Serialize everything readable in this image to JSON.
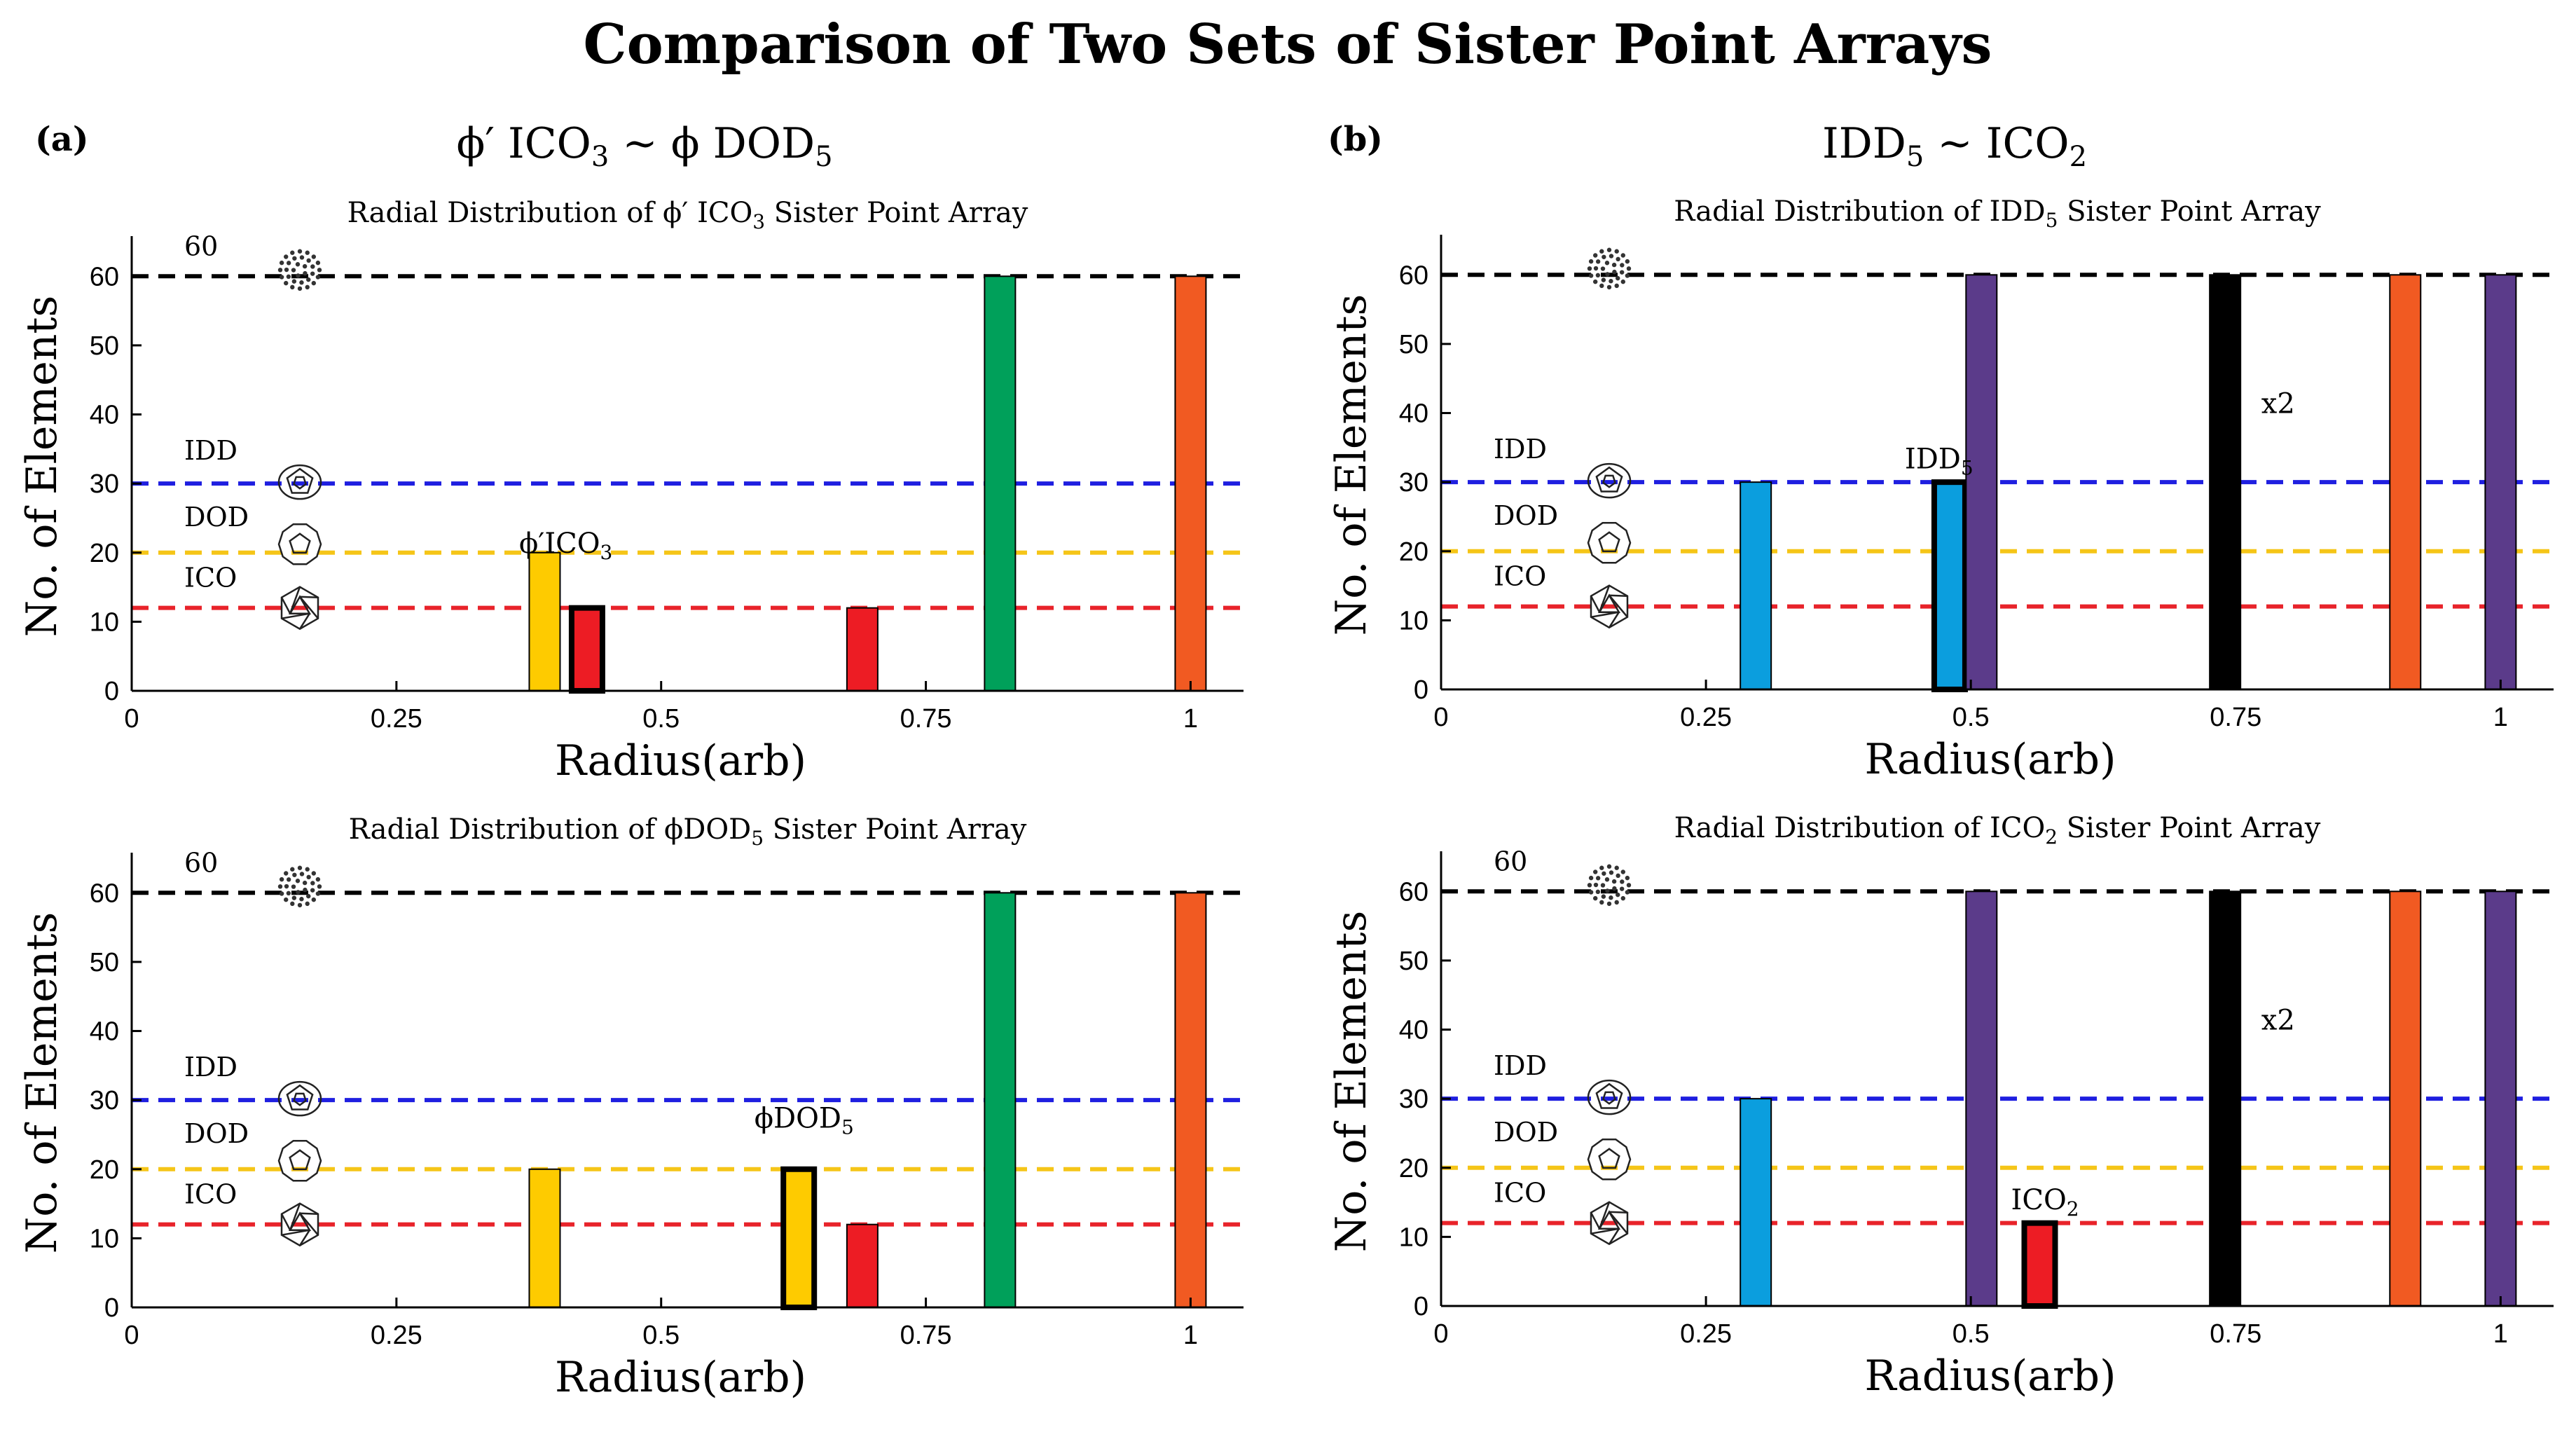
{
  "title": "Comparison of Two Sets of Sister Point Arrays",
  "panels": [
    {
      "label": "(a)",
      "heading_parts": {
        "a": "ϕ′ ICO",
        "sub": "3",
        "b": " ~ ϕ DOD",
        "sub2": "5"
      }
    },
    {
      "label": "(b)",
      "heading_parts": {
        "a": "IDD",
        "sub": "5",
        "b": " ~ ICO",
        "sub2": "2"
      }
    }
  ],
  "colors": {
    "black_line": "#000000",
    "idd_line": "#1f1fe0",
    "dod_line": "#f5c518",
    "ico_line": "#e8232a",
    "yellow": "#fecb00",
    "red": "#ed1c24",
    "green": "#00a05a",
    "orange": "#f15a22",
    "purple": "#5b3b8a",
    "blue": "#0b9ede",
    "black": "#000000"
  },
  "chart_data": [
    {
      "type": "bar",
      "title": "Radial Distribution of ϕ′ ICO₃ Sister Point Array",
      "title_parts": {
        "pre": "Radial Distribution of ϕ′ ICO",
        "sub": "3",
        "post": " Sister Point Array"
      },
      "xlabel": "Radius(arb)",
      "ylabel": "No. of Elements",
      "xlim": [
        0,
        1.05
      ],
      "ylim": [
        0,
        65
      ],
      "xticks": [
        0,
        0.25,
        0.5,
        0.75,
        1
      ],
      "xtick_labels": [
        "0",
        "0.25",
        "0.5",
        "0.75",
        "1"
      ],
      "yticks": [
        0,
        10,
        20,
        30,
        40,
        50,
        60
      ],
      "ytick_labels": [
        "0",
        "10",
        "20",
        "30",
        "40",
        "50",
        "60"
      ],
      "reference_lines": [
        {
          "name": "60",
          "value": 60,
          "color": "#000000",
          "label": "60",
          "icon": "sphere-60-icon"
        },
        {
          "name": "IDD",
          "value": 30,
          "color": "#1f1fe0",
          "label": "IDD",
          "icon": "idd-icon"
        },
        {
          "name": "DOD",
          "value": 20,
          "color": "#f5c518",
          "label": "DOD",
          "icon": "dod-icon"
        },
        {
          "name": "ICO",
          "value": 12,
          "color": "#e8232a",
          "label": "ICO",
          "icon": "ico-icon"
        }
      ],
      "bars": [
        {
          "x": 0.39,
          "value": 20,
          "color": "#fecb00",
          "highlight": false
        },
        {
          "x": 0.43,
          "value": 12,
          "color": "#ed1c24",
          "highlight": true
        },
        {
          "x": 0.69,
          "value": 12,
          "color": "#ed1c24",
          "highlight": false
        },
        {
          "x": 0.82,
          "value": 60,
          "color": "#00a05a",
          "highlight": false
        },
        {
          "x": 1.0,
          "value": 60,
          "color": "#f15a22",
          "highlight": false
        }
      ],
      "annotations": [
        {
          "pre": "ϕ′ICO",
          "sub": "3",
          "x": 0.41,
          "y": 20
        }
      ]
    },
    {
      "type": "bar",
      "title": "Radial Distribution of ϕDOD₅ Sister Point Array",
      "title_parts": {
        "pre": "Radial Distribution of ϕDOD",
        "sub": "5",
        "post": " Sister Point Array"
      },
      "xlabel": "Radius(arb)",
      "ylabel": "No. of Elements",
      "xlim": [
        0,
        1.05
      ],
      "ylim": [
        0,
        65
      ],
      "xticks": [
        0,
        0.25,
        0.5,
        0.75,
        1
      ],
      "xtick_labels": [
        "0",
        "0.25",
        "0.5",
        "0.75",
        "1"
      ],
      "yticks": [
        0,
        10,
        20,
        30,
        40,
        50,
        60
      ],
      "ytick_labels": [
        "0",
        "10",
        "20",
        "30",
        "40",
        "50",
        "60"
      ],
      "reference_lines": [
        {
          "name": "60",
          "value": 60,
          "color": "#000000",
          "label": "60",
          "icon": "sphere-60-icon"
        },
        {
          "name": "IDD",
          "value": 30,
          "color": "#1f1fe0",
          "label": "IDD",
          "icon": "idd-icon"
        },
        {
          "name": "DOD",
          "value": 20,
          "color": "#f5c518",
          "label": "DOD",
          "icon": "dod-icon"
        },
        {
          "name": "ICO",
          "value": 12,
          "color": "#e8232a",
          "label": "ICO",
          "icon": "ico-icon"
        }
      ],
      "bars": [
        {
          "x": 0.39,
          "value": 20,
          "color": "#fecb00",
          "highlight": false
        },
        {
          "x": 0.63,
          "value": 20,
          "color": "#fecb00",
          "highlight": true
        },
        {
          "x": 0.69,
          "value": 12,
          "color": "#ed1c24",
          "highlight": false
        },
        {
          "x": 0.82,
          "value": 60,
          "color": "#00a05a",
          "highlight": false
        },
        {
          "x": 1.0,
          "value": 60,
          "color": "#f15a22",
          "highlight": false
        }
      ],
      "annotations": [
        {
          "pre": "ϕDOD",
          "sub": "5",
          "x": 0.635,
          "y": 26
        }
      ]
    },
    {
      "type": "bar",
      "title": "Radial Distribution of IDD₅ Sister Point Array",
      "title_parts": {
        "pre": "Radial Distribution of IDD",
        "sub": "5",
        "post": " Sister Point Array"
      },
      "xlabel": "Radius(arb)",
      "ylabel": "No. of Elements",
      "xlim": [
        0,
        1.05
      ],
      "ylim": [
        0,
        65
      ],
      "xticks": [
        0,
        0.25,
        0.5,
        0.75,
        1
      ],
      "xtick_labels": [
        "0",
        "0.25",
        "0.5",
        "0.75",
        "1"
      ],
      "yticks": [
        0,
        10,
        20,
        30,
        40,
        50,
        60
      ],
      "ytick_labels": [
        "0",
        "10",
        "20",
        "30",
        "40",
        "50",
        "60"
      ],
      "reference_lines": [
        {
          "name": "60",
          "value": 60,
          "color": "#000000",
          "label": "",
          "icon": "sphere-60-icon"
        },
        {
          "name": "IDD",
          "value": 30,
          "color": "#1f1fe0",
          "label": "IDD",
          "icon": "idd-icon"
        },
        {
          "name": "DOD",
          "value": 20,
          "color": "#f5c518",
          "label": "DOD",
          "icon": "dod-icon"
        },
        {
          "name": "ICO",
          "value": 12,
          "color": "#e8232a",
          "label": "ICO",
          "icon": "ico-icon"
        }
      ],
      "bars": [
        {
          "x": 0.297,
          "value": 30,
          "color": "#0b9ede",
          "highlight": false
        },
        {
          "x": 0.48,
          "value": 30,
          "color": "#0b9ede",
          "highlight": true
        },
        {
          "x": 0.51,
          "value": 60,
          "color": "#5b3b8a",
          "highlight": false
        },
        {
          "x": 0.74,
          "value": 60,
          "color": "#000000",
          "highlight": false
        },
        {
          "x": 0.91,
          "value": 60,
          "color": "#f15a22",
          "highlight": false
        },
        {
          "x": 1.0,
          "value": 60,
          "color": "#5b3b8a",
          "highlight": false
        }
      ],
      "annotations": [
        {
          "pre": "IDD",
          "sub": "5",
          "x": 0.47,
          "y": 32
        },
        {
          "pre": "x2",
          "sub": "",
          "x": 0.79,
          "y": 40
        }
      ]
    },
    {
      "type": "bar",
      "title": "Radial Distribution of ICO₂ Sister Point Array",
      "title_parts": {
        "pre": "Radial Distribution of ICO",
        "sub": "2",
        "post": " Sister Point Array"
      },
      "xlabel": "Radius(arb)",
      "ylabel": "No. of Elements",
      "xlim": [
        0,
        1.05
      ],
      "ylim": [
        0,
        65
      ],
      "xticks": [
        0,
        0.25,
        0.5,
        0.75,
        1
      ],
      "xtick_labels": [
        "0",
        "0.25",
        "0.5",
        "0.75",
        "1"
      ],
      "yticks": [
        0,
        10,
        20,
        30,
        40,
        50,
        60
      ],
      "ytick_labels": [
        "0",
        "10",
        "20",
        "30",
        "40",
        "50",
        "60"
      ],
      "reference_lines": [
        {
          "name": "60",
          "value": 60,
          "color": "#000000",
          "label": "60",
          "icon": "sphere-60-icon"
        },
        {
          "name": "IDD",
          "value": 30,
          "color": "#1f1fe0",
          "label": "IDD",
          "icon": "idd-icon"
        },
        {
          "name": "DOD",
          "value": 20,
          "color": "#f5c518",
          "label": "DOD",
          "icon": "dod-icon"
        },
        {
          "name": "ICO",
          "value": 12,
          "color": "#e8232a",
          "label": "ICO",
          "icon": "ico-icon"
        }
      ],
      "bars": [
        {
          "x": 0.297,
          "value": 30,
          "color": "#0b9ede",
          "highlight": false
        },
        {
          "x": 0.51,
          "value": 60,
          "color": "#5b3b8a",
          "highlight": false
        },
        {
          "x": 0.565,
          "value": 12,
          "color": "#ed1c24",
          "highlight": true
        },
        {
          "x": 0.74,
          "value": 60,
          "color": "#000000",
          "highlight": false
        },
        {
          "x": 0.91,
          "value": 60,
          "color": "#f15a22",
          "highlight": false
        },
        {
          "x": 1.0,
          "value": 60,
          "color": "#5b3b8a",
          "highlight": false
        }
      ],
      "annotations": [
        {
          "pre": "ICO",
          "sub": "2",
          "x": 0.57,
          "y": 14
        },
        {
          "pre": "x2",
          "sub": "",
          "x": 0.79,
          "y": 40
        }
      ]
    }
  ]
}
